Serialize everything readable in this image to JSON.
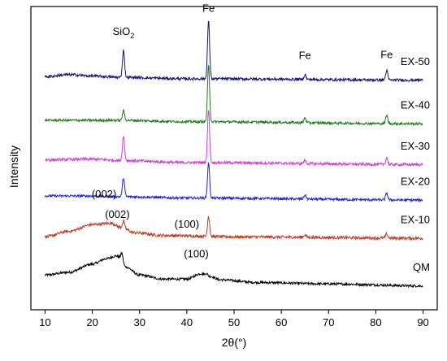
{
  "chart_data": {
    "type": "line",
    "xlabel": "2θ(°)",
    "ylabel": "Intensity",
    "xlim": [
      7,
      93
    ],
    "xticks": [
      10,
      20,
      30,
      40,
      50,
      60,
      70,
      80,
      90
    ],
    "yticks_shown": false,
    "grid": false,
    "legend": "inline labels at right end of each trace",
    "series": [
      {
        "name": "QM",
        "color": "#000000",
        "baseline": 0.0,
        "profile": [
          [
            10,
            0.16
          ],
          [
            15,
            0.2
          ],
          [
            20,
            0.32
          ],
          [
            23,
            0.4
          ],
          [
            25,
            0.44
          ],
          [
            26,
            0.42
          ],
          [
            27,
            0.28
          ],
          [
            30,
            0.16
          ],
          [
            35,
            0.1
          ],
          [
            40,
            0.1
          ],
          [
            43,
            0.18
          ],
          [
            45,
            0.14
          ],
          [
            47,
            0.09
          ],
          [
            55,
            0.05
          ],
          [
            70,
            0.03
          ],
          [
            90,
            0.0
          ]
        ],
        "peaks": [
          [
            26.3,
            0.08
          ],
          [
            44.2,
            0.03
          ]
        ],
        "noise": 0.018
      },
      {
        "name": "EX-10",
        "color": "#c23b22",
        "baseline": 0.7,
        "profile": [
          [
            10,
            0.02
          ],
          [
            15,
            0.1
          ],
          [
            20,
            0.2
          ],
          [
            24,
            0.22
          ],
          [
            26,
            0.16
          ],
          [
            29,
            0.08
          ],
          [
            35,
            0.04
          ],
          [
            50,
            0.02
          ],
          [
            90,
            0.0
          ]
        ],
        "peaks": [
          [
            26.6,
            0.1
          ],
          [
            44.6,
            0.3
          ],
          [
            65.0,
            0.04
          ],
          [
            82.3,
            0.06
          ]
        ],
        "noise": 0.022
      },
      {
        "name": "EX-20",
        "color": "#1e22e0",
        "baseline": 1.26,
        "profile": [
          [
            10,
            0.06
          ],
          [
            20,
            0.06
          ],
          [
            26,
            0.05
          ],
          [
            40,
            0.03
          ],
          [
            90,
            0.0
          ]
        ],
        "peaks": [
          [
            26.6,
            0.28
          ],
          [
            44.6,
            0.52
          ],
          [
            65.0,
            0.06
          ],
          [
            82.3,
            0.1
          ]
        ],
        "noise": 0.018
      },
      {
        "name": "EX-30",
        "color": "#d23cd6",
        "baseline": 1.78,
        "profile": [
          [
            10,
            0.07
          ],
          [
            20,
            0.08
          ],
          [
            26,
            0.06
          ],
          [
            40,
            0.03
          ],
          [
            90,
            0.0
          ]
        ],
        "peaks": [
          [
            26.6,
            0.36
          ],
          [
            44.6,
            0.78
          ],
          [
            65.0,
            0.05
          ],
          [
            82.3,
            0.1
          ]
        ],
        "noise": 0.02
      },
      {
        "name": "EX-40",
        "color": "#1f7a22",
        "baseline": 2.38,
        "profile": [
          [
            10,
            0.05
          ],
          [
            20,
            0.05
          ],
          [
            26,
            0.05
          ],
          [
            40,
            0.03
          ],
          [
            90,
            0.0
          ]
        ],
        "peaks": [
          [
            26.6,
            0.14
          ],
          [
            44.6,
            0.82
          ],
          [
            65.0,
            0.07
          ],
          [
            82.3,
            0.12
          ]
        ],
        "noise": 0.018
      },
      {
        "name": "EX-50",
        "color": "#15157a",
        "baseline": 3.02,
        "profile": [
          [
            10,
            0.05
          ],
          [
            15,
            0.08
          ],
          [
            20,
            0.06
          ],
          [
            26,
            0.04
          ],
          [
            40,
            0.02
          ],
          [
            90,
            0.0
          ]
        ],
        "peaks": [
          [
            26.6,
            0.4
          ],
          [
            44.6,
            0.85
          ],
          [
            65.0,
            0.07
          ],
          [
            82.3,
            0.14
          ]
        ],
        "noise": 0.02
      }
    ],
    "annotations": [
      {
        "text": "SiO",
        "sub": "2",
        "x": 26.6,
        "series": "EX-50",
        "dy": 0.62
      },
      {
        "text": "Fe",
        "sub": "",
        "x": 44.6,
        "series": "EX-50",
        "dy": 0.98
      },
      {
        "text": "Fe",
        "sub": "",
        "x": 65.0,
        "series": "EX-50",
        "dy": 0.3
      },
      {
        "text": "Fe",
        "sub": "",
        "x": 82.3,
        "series": "EX-50",
        "dy": 0.32
      },
      {
        "text": "(002)",
        "sub": "",
        "x": 22.5,
        "series": "EX-10",
        "dy": 0.38
      },
      {
        "text": "(100)",
        "sub": "",
        "x": 40.0,
        "series": "EX-10",
        "dy": 0.12
      },
      {
        "text": "(002)",
        "sub": "",
        "x": 25.3,
        "series": "QM",
        "dy": 0.56
      },
      {
        "text": "(100)",
        "sub": "",
        "x": 42.0,
        "series": "QM",
        "dy": 0.26
      }
    ]
  }
}
